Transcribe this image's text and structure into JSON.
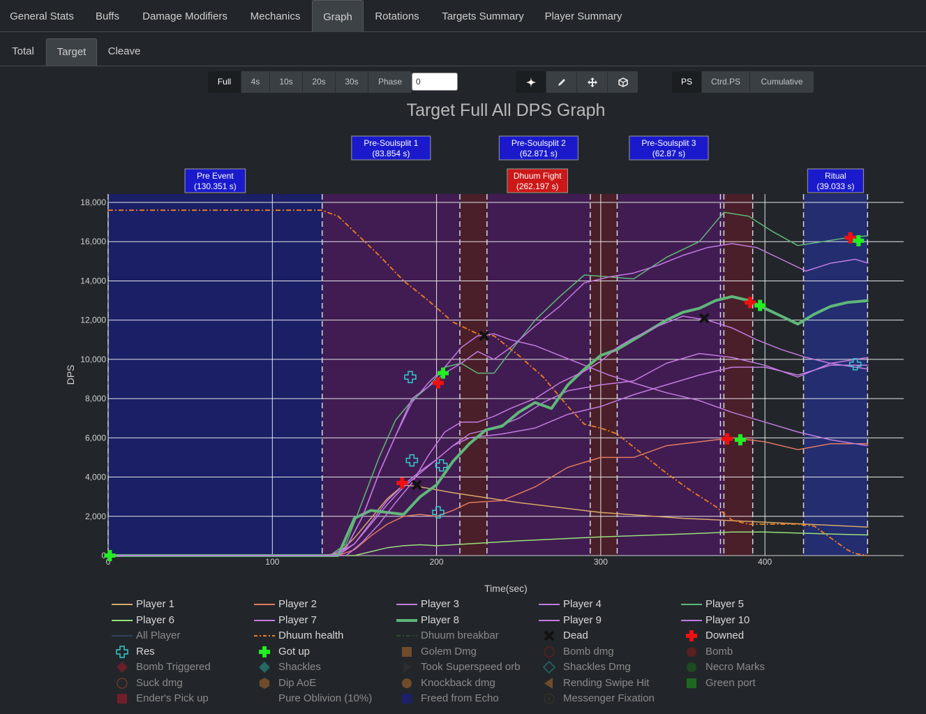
{
  "tabs": [
    "General Stats",
    "Buffs",
    "Damage Modifiers",
    "Mechanics",
    "Graph",
    "Rotations",
    "Targets Summary",
    "Player Summary"
  ],
  "active_tab": "Graph",
  "subtabs": [
    "Total",
    "Target",
    "Cleave"
  ],
  "active_subtab": "Target",
  "range_buttons": [
    "Full",
    "4s",
    "10s",
    "20s",
    "30s",
    "Phase"
  ],
  "active_range": "Full",
  "phase_input": "0",
  "mode_icons": [
    "burst-icon",
    "pen-icon",
    "move-icon",
    "cube-icon"
  ],
  "mode_buttons": [
    "PS",
    "Ctrd.PS",
    "Cumulative"
  ],
  "active_mode": "PS",
  "chart_data": {
    "type": "line",
    "title": "Target Full All DPS Graph",
    "xlabel": "Time(sec)",
    "ylabel": "DPS",
    "xlim": [
      0,
      485
    ],
    "ylim": [
      0,
      18000
    ],
    "xticks": [
      0,
      100,
      200,
      300,
      400
    ],
    "yticks": [
      0,
      2000,
      4000,
      6000,
      8000,
      10000,
      12000,
      14000,
      16000,
      18000
    ],
    "ytick_labels": [
      "0",
      "2,000",
      "4,000",
      "6,000",
      "8,000",
      "10,000",
      "12,000",
      "14,000",
      "16,000",
      "18,000"
    ],
    "grid": true,
    "phases": [
      {
        "label": "Pre Event",
        "duration": "(130.351 s)",
        "start": 0,
        "end": 130.35,
        "color": "#1a1f66",
        "box": "#1a1acc",
        "row": 2
      },
      {
        "label": "Dhuum Fight",
        "duration": "(262.197 s)",
        "start": 130.35,
        "end": 392.55,
        "color": "#411c52",
        "box": "#cc1818",
        "row": 2
      },
      {
        "label": "Ritual",
        "duration": "(39.033 s)",
        "start": 423.5,
        "end": 462.5,
        "color": "#232d70",
        "box": "#1a1acc",
        "row": 2
      },
      {
        "label": "Pre-Soulsplit 1",
        "duration": "(83.854 s)",
        "start": 130.35,
        "end": 214.2,
        "color": "",
        "box": "#1a1acc",
        "row": 1
      },
      {
        "label": "Pre-Soulsplit 2",
        "duration": "(62.871 s)",
        "start": 230.7,
        "end": 293.6,
        "color": "",
        "box": "#1a1acc",
        "row": 1
      },
      {
        "label": "Pre-Soulsplit 3",
        "duration": "(62.87 s)",
        "start": 310,
        "end": 372.9,
        "color": "",
        "box": "#1a1acc",
        "row": 1
      }
    ],
    "soulsplits": [
      [
        214.2,
        230.7
      ],
      [
        293.6,
        310
      ],
      [
        375,
        392.55
      ]
    ],
    "series": [
      {
        "name": "Player 1",
        "color": "#d9a86c",
        "width": 1.5,
        "x": [
          0,
          130,
          140,
          150,
          160,
          170,
          180,
          190,
          210,
          250,
          300,
          350,
          400,
          463
        ],
        "y": [
          0,
          0,
          100,
          900,
          1900,
          2900,
          3600,
          3500,
          3200,
          2700,
          2200,
          1900,
          1700,
          1450
        ]
      },
      {
        "name": "Player 2",
        "color": "#e07a5f",
        "width": 1.5,
        "x": [
          0,
          140,
          150,
          160,
          170,
          180,
          190,
          200,
          210,
          220,
          240,
          260,
          280,
          300,
          320,
          340,
          360,
          380,
          400,
          420,
          440,
          463
        ],
        "y": [
          0,
          0,
          300,
          1000,
          1600,
          2000,
          2100,
          2000,
          2300,
          2700,
          2800,
          3500,
          4500,
          5000,
          5000,
          5600,
          5800,
          6000,
          5800,
          5400,
          5700,
          5700
        ]
      },
      {
        "name": "Player 3",
        "color": "#c27be0",
        "width": 1.5,
        "x": [
          0,
          135,
          145,
          155,
          165,
          175,
          185,
          195,
          205,
          215,
          225,
          235,
          245,
          260,
          275,
          290,
          305,
          320,
          340,
          360,
          380,
          400,
          420,
          440,
          455,
          463
        ],
        "y": [
          0,
          0,
          400,
          2000,
          4200,
          6100,
          7800,
          8800,
          9600,
          10600,
          11200,
          11300,
          11000,
          10700,
          10200,
          9700,
          9200,
          8800,
          8300,
          7900,
          7300,
          6800,
          6300,
          5900,
          5700,
          5600
        ]
      },
      {
        "name": "Player 4",
        "color": "#c27be0",
        "width": 1.5,
        "x": [
          0,
          138,
          150,
          160,
          170,
          180,
          190,
          200,
          210,
          220,
          240,
          260,
          280,
          300,
          320,
          340,
          360,
          380,
          400,
          420,
          440,
          463
        ],
        "y": [
          0,
          0,
          600,
          1700,
          2800,
          3600,
          4300,
          4900,
          5600,
          6000,
          6200,
          6500,
          7200,
          7600,
          8200,
          8700,
          9200,
          9600,
          9600,
          9200,
          9700,
          9700
        ]
      },
      {
        "name": "Player 5",
        "color": "#5fb87a",
        "width": 1.5,
        "x": [
          0,
          135,
          145,
          155,
          165,
          175,
          185,
          195,
          205,
          215,
          225,
          235,
          245,
          260,
          275,
          290,
          305,
          320,
          340,
          360,
          375,
          390,
          405,
          420,
          435,
          450,
          463
        ],
        "y": [
          0,
          0,
          600,
          2800,
          5000,
          6900,
          7900,
          8600,
          9600,
          9800,
          9300,
          9300,
          10400,
          12000,
          13200,
          14300,
          14200,
          14100,
          15200,
          16000,
          17500,
          17300,
          16500,
          15800,
          16000,
          16200,
          16300
        ]
      },
      {
        "name": "Player 6",
        "color": "#98e07a",
        "width": 1.5,
        "x": [
          0,
          150,
          160,
          170,
          180,
          190,
          200,
          220,
          250,
          300,
          350,
          380,
          400,
          420,
          440,
          463
        ],
        "y": [
          0,
          0,
          200,
          400,
          500,
          550,
          500,
          600,
          750,
          950,
          1100,
          1200,
          1200,
          1150,
          1100,
          1050
        ]
      },
      {
        "name": "Player 7",
        "color": "#c27be0",
        "width": 1.5,
        "x": [
          0,
          140,
          150,
          160,
          170,
          180,
          190,
          200,
          210,
          220,
          235,
          250,
          265,
          280,
          300,
          320,
          340,
          360,
          380,
          400,
          420,
          440,
          463
        ],
        "y": [
          0,
          0,
          600,
          1600,
          2600,
          3500,
          4200,
          4900,
          5600,
          6200,
          6500,
          7000,
          7800,
          8400,
          8700,
          8900,
          9800,
          10300,
          10100,
          9700,
          9100,
          9800,
          10100
        ]
      },
      {
        "name": "Player 8",
        "color": "#5fb87a",
        "width": 4,
        "x": [
          0,
          140,
          150,
          160,
          170,
          180,
          190,
          200,
          210,
          220,
          230,
          240,
          250,
          260,
          270,
          280,
          290,
          300,
          310,
          320,
          330,
          340,
          350,
          360,
          370,
          380,
          390,
          400,
          410,
          420,
          430,
          440,
          450,
          463
        ],
        "y": [
          0,
          0,
          1900,
          2300,
          2200,
          2100,
          3000,
          3600,
          4800,
          5700,
          6400,
          6600,
          7300,
          7800,
          7500,
          8700,
          9500,
          10200,
          10500,
          11000,
          11500,
          12000,
          12400,
          12600,
          13000,
          13200,
          13000,
          12600,
          12200,
          11800,
          12300,
          12700,
          12900,
          13000
        ]
      },
      {
        "name": "Player 9",
        "color": "#c27be0",
        "width": 1.5,
        "x": [
          0,
          135,
          145,
          155,
          165,
          175,
          185,
          195,
          205,
          215,
          225,
          235,
          245,
          260,
          275,
          290,
          305,
          320,
          335,
          350,
          365,
          380,
          395,
          410,
          425,
          440,
          455,
          463
        ],
        "y": [
          0,
          0,
          400,
          2000,
          4200,
          6100,
          8000,
          8600,
          9300,
          9800,
          10400,
          10000,
          10600,
          11700,
          12700,
          13900,
          14200,
          14400,
          14800,
          15300,
          15700,
          15900,
          15700,
          15100,
          14500,
          14900,
          15100,
          14900
        ]
      },
      {
        "name": "Player 10",
        "color": "#c27be0",
        "width": 1.5,
        "x": [
          0,
          145,
          155,
          165,
          175,
          185,
          195,
          205,
          215,
          225,
          235,
          245,
          260,
          275,
          290,
          300,
          310,
          320,
          335,
          350,
          365,
          380,
          395,
          410,
          425,
          440,
          455,
          463
        ],
        "y": [
          0,
          0,
          700,
          1600,
          2700,
          3700,
          5100,
          6300,
          6800,
          6800,
          7100,
          7500,
          8000,
          8800,
          9400,
          9900,
          10600,
          11100,
          11700,
          12200,
          12000,
          11600,
          11000,
          10500,
          10100,
          9800,
          9600,
          9500
        ]
      },
      {
        "name": "Dhuum health",
        "color": "#f07f1e",
        "width": 1.8,
        "dash": "7,3,2,3",
        "x": [
          0,
          130,
          140,
          150,
          165,
          180,
          195,
          210,
          225,
          235,
          250,
          265,
          280,
          290,
          300,
          310,
          325,
          340,
          355,
          370,
          380,
          390,
          400,
          410,
          420,
          430,
          440,
          450,
          455,
          463
        ],
        "y": [
          17600,
          17600,
          17300,
          16500,
          15300,
          14000,
          13000,
          11900,
          11300,
          11200,
          10200,
          9100,
          7600,
          6700,
          6500,
          6200,
          5200,
          4200,
          3300,
          2500,
          1800,
          1600,
          1600,
          1600,
          1600,
          1500,
          900,
          300,
          100,
          0
        ]
      }
    ],
    "markers": [
      {
        "kind": "dead",
        "color": "#111111",
        "points": [
          [
            229,
            11200
          ],
          [
            188,
            3600
          ],
          [
            363,
            12100
          ]
        ]
      },
      {
        "kind": "downed",
        "color": "#ee1111",
        "points": [
          [
            201,
            8800
          ],
          [
            179,
            3700
          ],
          [
            377,
            5950
          ],
          [
            391,
            12900
          ],
          [
            452,
            16200
          ]
        ]
      },
      {
        "kind": "gotup",
        "color": "#22ee22",
        "points": [
          [
            204,
            9300
          ],
          [
            385,
            5900
          ],
          [
            397,
            12750
          ],
          [
            457,
            16050
          ],
          [
            1,
            0
          ]
        ]
      },
      {
        "kind": "res",
        "color": "#33cccc",
        "points": [
          [
            184,
            9100
          ],
          [
            185,
            4850
          ],
          [
            203,
            4600
          ],
          [
            201,
            2200
          ],
          [
            455,
            9750
          ]
        ]
      }
    ],
    "legend": [
      {
        "label": "Player 1",
        "sym": "line",
        "color": "#d9a86c",
        "on": true
      },
      {
        "label": "Player 2",
        "sym": "line",
        "color": "#e07a5f",
        "on": true
      },
      {
        "label": "Player 3",
        "sym": "line",
        "color": "#c27be0",
        "on": true
      },
      {
        "label": "Player 4",
        "sym": "line",
        "color": "#c27be0",
        "on": true
      },
      {
        "label": "Player 5",
        "sym": "line",
        "color": "#5fb87a",
        "on": true
      },
      {
        "label": "Player 6",
        "sym": "line",
        "color": "#98e07a",
        "on": true
      },
      {
        "label": "Player 7",
        "sym": "line",
        "color": "#c27be0",
        "on": true
      },
      {
        "label": "Player 8",
        "sym": "thick",
        "color": "#5fb87a",
        "on": true
      },
      {
        "label": "Player 9",
        "sym": "line",
        "color": "#c27be0",
        "on": true
      },
      {
        "label": "Player 10",
        "sym": "line",
        "color": "#c27be0",
        "on": true
      },
      {
        "label": "All Player",
        "sym": "line",
        "color": "#3a5a80",
        "on": false
      },
      {
        "label": "Dhuum health",
        "sym": "dash",
        "color": "#f07f1e",
        "on": true
      },
      {
        "label": "Dhuum breakbar",
        "sym": "dashdot",
        "color": "#3b7a3b",
        "on": false
      },
      {
        "label": "Dead",
        "sym": "x",
        "color": "#111111",
        "on": true
      },
      {
        "label": "Downed",
        "sym": "cross",
        "color": "#ee1111",
        "on": true
      },
      {
        "label": "Res",
        "sym": "crossopen",
        "color": "#33cccc",
        "on": true
      },
      {
        "label": "Got up",
        "sym": "cross",
        "color": "#22ee22",
        "on": true
      },
      {
        "label": "Golem Dmg",
        "sym": "square",
        "color": "#b06a2a",
        "on": false
      },
      {
        "label": "Bomb dmg",
        "sym": "circleopen",
        "color": "#8a1a1a",
        "on": false
      },
      {
        "label": "Bomb",
        "sym": "circle",
        "color": "#8a1a1a",
        "on": false
      },
      {
        "label": "Bomb Triggered",
        "sym": "diamond",
        "color": "#a01a2a",
        "on": false
      },
      {
        "label": "Shackles",
        "sym": "diamond",
        "color": "#2aa090",
        "on": false
      },
      {
        "label": "Took Superspeed orb",
        "sym": "triangle",
        "color": "#333333",
        "on": false
      },
      {
        "label": "Shackles Dmg",
        "sym": "diamondopen",
        "color": "#2aa0a0",
        "on": false
      },
      {
        "label": "Necro Marks",
        "sym": "circle",
        "color": "#1a6a1a",
        "on": false
      },
      {
        "label": "Suck dmg",
        "sym": "circleopen",
        "color": "#a04a1a",
        "on": false
      },
      {
        "label": "Dip AoE",
        "sym": "hexagon",
        "color": "#b06a2a",
        "on": false
      },
      {
        "label": "Knockback dmg",
        "sym": "circle",
        "color": "#b06a2a",
        "on": false
      },
      {
        "label": "Rending Swipe Hit",
        "sym": "triangleleft",
        "color": "#b06a2a",
        "on": false
      },
      {
        "label": "Green port",
        "sym": "square",
        "color": "#1aa01a",
        "on": false
      },
      {
        "label": "Ender's Pick up",
        "sym": "square",
        "color": "#b01a2a",
        "on": false
      },
      {
        "label": "Pure Oblivion (10%)",
        "sym": "hexagonopen",
        "color": "#222222",
        "on": false
      },
      {
        "label": "Freed from Echo",
        "sym": "square",
        "color": "#1a1aa0",
        "on": false
      },
      {
        "label": "Messenger Fixation",
        "sym": "star",
        "color": "#3a3a1a",
        "on": false
      }
    ]
  }
}
